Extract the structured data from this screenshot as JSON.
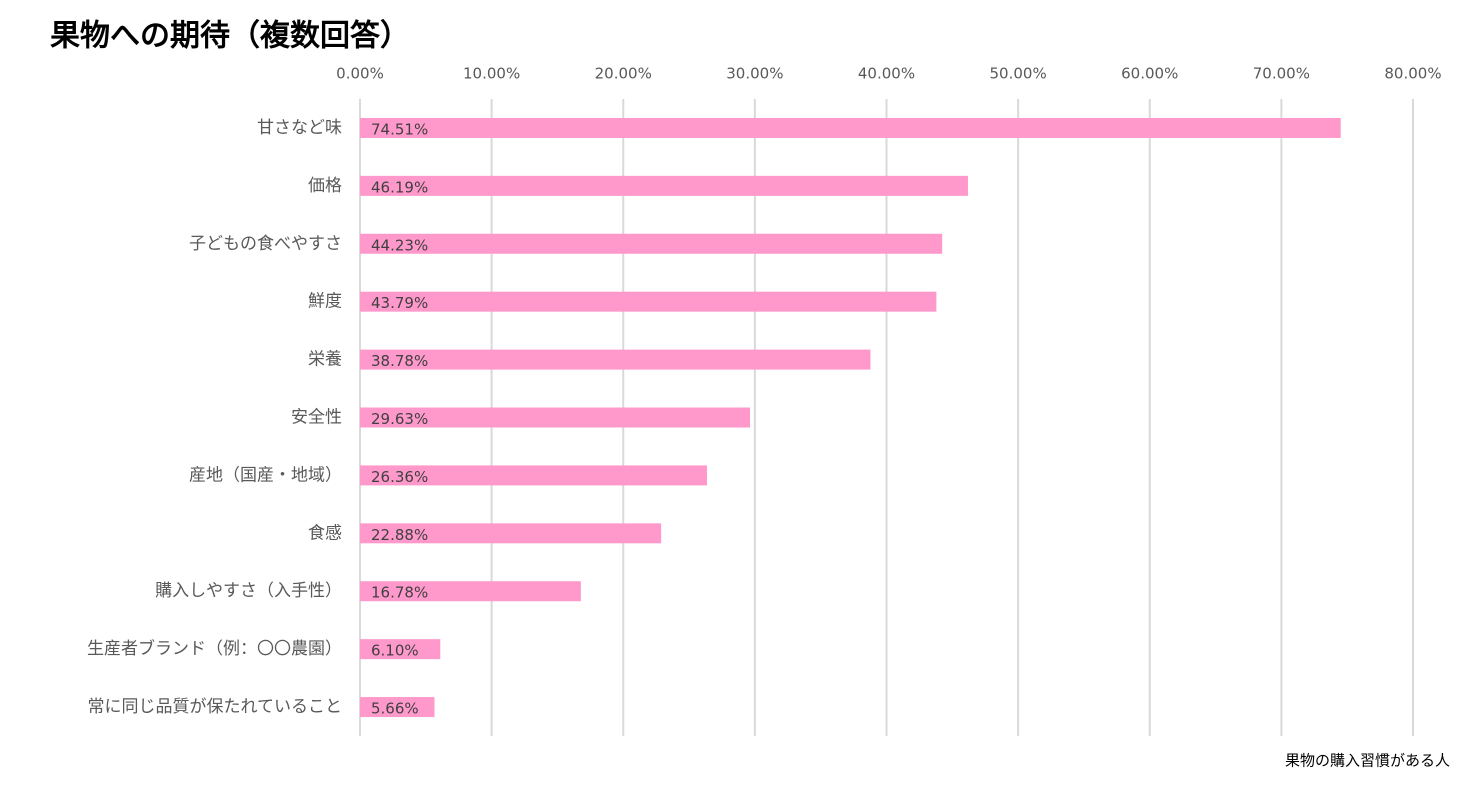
{
  "chart_data": {
    "type": "bar",
    "orientation": "horizontal",
    "title": "果物への期待（複数回答）",
    "categories": [
      "甘さなど味",
      "価格",
      "子どもの食べやすさ",
      "鮮度",
      "栄養",
      "安全性",
      "産地（国産・地域）",
      "食感",
      "購入しやすさ（入手性）",
      "生産者ブランド（例：〇〇農園）",
      "常に同じ品質が保たれていること"
    ],
    "values": [
      74.51,
      46.19,
      44.23,
      43.79,
      38.78,
      29.63,
      26.36,
      22.88,
      16.78,
      6.1,
      5.66
    ],
    "value_labels": [
      "74.51%",
      "46.19%",
      "44.23%",
      "43.79%",
      "38.78%",
      "29.63%",
      "26.36%",
      "22.88%",
      "16.78%",
      "6.10%",
      "5.66%"
    ],
    "color": "#ff99cc",
    "xlim": [
      0,
      80
    ],
    "xticks": [
      {
        "value": 0,
        "label": "0.00%"
      },
      {
        "value": 10,
        "label": "10.00%"
      },
      {
        "value": 20,
        "label": "20.00%"
      },
      {
        "value": 30,
        "label": "30.00%"
      },
      {
        "value": 40,
        "label": "40.00%"
      },
      {
        "value": 50,
        "label": "50.00%"
      },
      {
        "value": 60,
        "label": "60.00%"
      },
      {
        "value": 70,
        "label": "70.00%"
      },
      {
        "value": 80,
        "label": "80.00%"
      }
    ],
    "grid": true,
    "annotation": "果物の購入習慣がある人"
  }
}
